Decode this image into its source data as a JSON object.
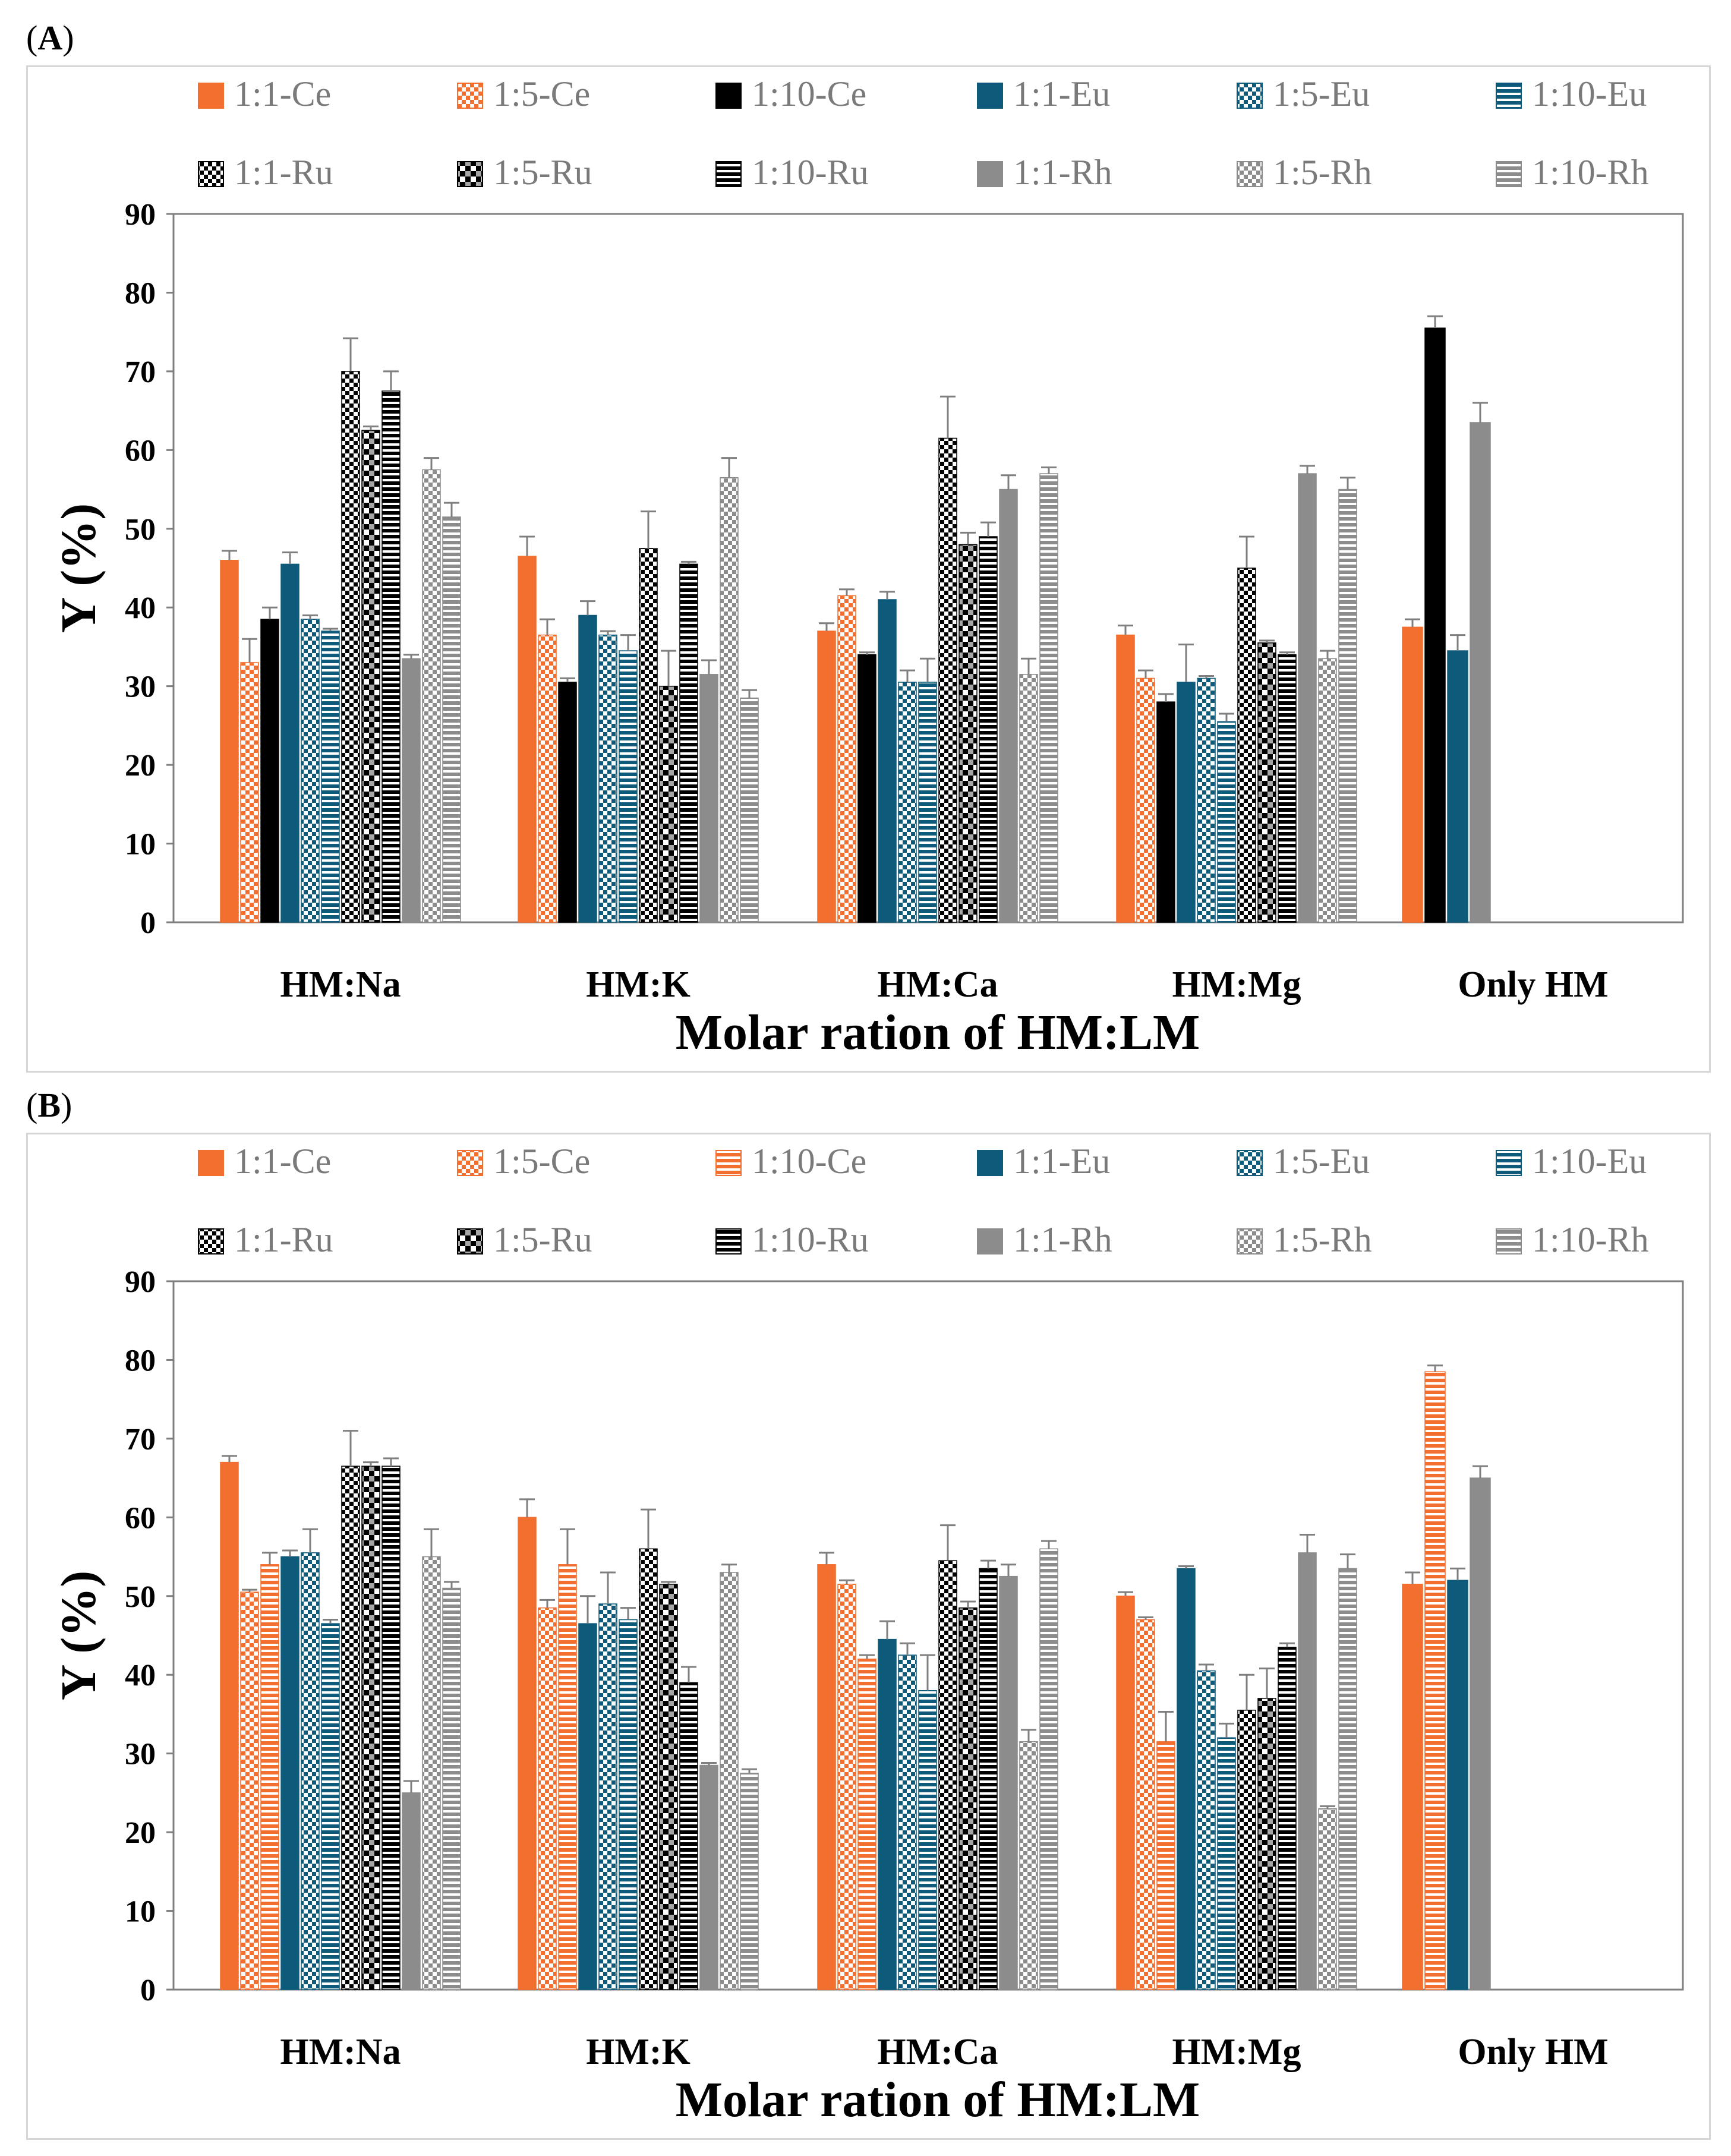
{
  "chart_data": [
    {
      "panel": "A",
      "type": "bar",
      "xlabel": "Molar ration of HM:LM",
      "ylabel": "Y (%)",
      "ylim": [
        0,
        90
      ],
      "yticks": [
        "0",
        "10",
        "20",
        "30",
        "40",
        "50",
        "60",
        "70",
        "80",
        "90"
      ],
      "categories": [
        "HM:Na",
        "HM:K",
        "HM:Ca",
        "HM:Mg",
        "Only HM"
      ],
      "legend_position": "top",
      "series": [
        {
          "name": "1:1-Ce",
          "color": "#F36F2F",
          "pattern": "solid",
          "values": [
            46,
            46.5,
            37,
            36.5,
            37.5
          ],
          "errors": [
            1.2,
            2.5,
            1.0,
            1.2,
            1.0
          ]
        },
        {
          "name": "1:5-Ce",
          "color": "#F36F2F",
          "pattern": "check",
          "values": [
            33,
            36.5,
            41.5,
            31,
            null
          ],
          "errors": [
            3.0,
            2.0,
            0.8,
            1.0,
            null
          ]
        },
        {
          "name": "1:10-Ce",
          "color": "#000000",
          "pattern": "solid",
          "values": [
            38.5,
            30.5,
            34,
            28,
            75.5
          ],
          "errors": [
            1.5,
            0.5,
            0.3,
            1.0,
            1.5
          ]
        },
        {
          "name": "1:1-Eu",
          "color": "#0E5A7A",
          "pattern": "solid",
          "values": [
            45.5,
            39,
            41,
            30.5,
            34.5
          ],
          "errors": [
            1.5,
            1.8,
            1.0,
            4.8,
            2.0
          ]
        },
        {
          "name": "1:5-Eu",
          "color": "#0E5A7A",
          "pattern": "check",
          "values": [
            38.5,
            36.5,
            30.5,
            31,
            null
          ],
          "errors": [
            0.5,
            0.5,
            1.5,
            0.3,
            null
          ]
        },
        {
          "name": "1:10-Eu",
          "color": "#0E5A7A",
          "pattern": "hstripe",
          "values": [
            37,
            34.5,
            30.5,
            25.5,
            null
          ],
          "errors": [
            0.3,
            2.0,
            3.0,
            1.0,
            null
          ]
        },
        {
          "name": "1:1-Ru",
          "color": "#000000",
          "pattern": "check",
          "values": [
            70,
            47.5,
            61.5,
            45,
            null
          ],
          "errors": [
            4.2,
            4.7,
            5.3,
            4.0,
            null
          ]
        },
        {
          "name": "1:5-Ru",
          "color": "#000000",
          "pattern": "check2",
          "values": [
            62.5,
            30,
            48,
            35.5,
            null
          ],
          "errors": [
            0.5,
            4.5,
            1.5,
            0.3,
            null
          ]
        },
        {
          "name": "1:10-Ru",
          "color": "#000000",
          "pattern": "hstripe",
          "values": [
            67.5,
            45.5,
            49,
            34,
            null
          ],
          "errors": [
            2.5,
            0.3,
            1.8,
            0.3,
            null
          ]
        },
        {
          "name": "1:1-Rh",
          "color": "#8C8C8C",
          "pattern": "solid",
          "values": [
            33.5,
            31.5,
            55,
            57,
            63.5
          ],
          "errors": [
            0.5,
            1.8,
            1.8,
            1.0,
            2.5
          ]
        },
        {
          "name": "1:5-Rh",
          "color": "#8C8C8C",
          "pattern": "check",
          "values": [
            57.5,
            56.5,
            31.5,
            33.5,
            null
          ],
          "errors": [
            1.5,
            2.5,
            2.0,
            1.0,
            null
          ]
        },
        {
          "name": "1:10-Rh",
          "color": "#8C8C8C",
          "pattern": "hstripe",
          "values": [
            51.5,
            28.5,
            57,
            55,
            null
          ],
          "errors": [
            1.8,
            1.0,
            0.8,
            1.5,
            null
          ]
        }
      ]
    },
    {
      "panel": "B",
      "type": "bar",
      "xlabel": "Molar ration of HM:LM",
      "ylabel": "Y (%)",
      "ylim": [
        0,
        90
      ],
      "yticks": [
        "0",
        "10",
        "20",
        "30",
        "40",
        "50",
        "60",
        "70",
        "80",
        "90"
      ],
      "categories": [
        "HM:Na",
        "HM:K",
        "HM:Ca",
        "HM:Mg",
        "Only HM"
      ],
      "legend_position": "top",
      "series": [
        {
          "name": "1:1-Ce",
          "color": "#F36F2F",
          "pattern": "solid",
          "values": [
            67,
            60,
            54,
            50,
            51.5
          ],
          "errors": [
            0.8,
            2.3,
            1.5,
            0.5,
            1.5
          ]
        },
        {
          "name": "1:5-Ce",
          "color": "#F36F2F",
          "pattern": "check",
          "values": [
            50.5,
            48.5,
            51.5,
            47,
            null
          ],
          "errors": [
            0.3,
            1.0,
            0.5,
            0.3,
            null
          ]
        },
        {
          "name": "1:10-Ce",
          "color": "#F36F2F",
          "pattern": "hstripe",
          "values": [
            54,
            54,
            42,
            31.5,
            78.5
          ],
          "errors": [
            1.5,
            4.5,
            0.5,
            3.8,
            0.8
          ]
        },
        {
          "name": "1:1-Eu",
          "color": "#0E5A7A",
          "pattern": "solid",
          "values": [
            55,
            46.5,
            44.5,
            53.5,
            52
          ],
          "errors": [
            0.8,
            3.5,
            2.3,
            0.3,
            1.5
          ]
        },
        {
          "name": "1:5-Eu",
          "color": "#0E5A7A",
          "pattern": "check",
          "values": [
            55.5,
            49,
            42.5,
            40.5,
            null
          ],
          "errors": [
            3.0,
            4.0,
            1.5,
            0.8,
            null
          ]
        },
        {
          "name": "1:10-Eu",
          "color": "#0E5A7A",
          "pattern": "hstripe",
          "values": [
            46.5,
            47,
            38,
            32,
            null
          ],
          "errors": [
            0.5,
            1.5,
            4.5,
            1.8,
            null
          ]
        },
        {
          "name": "1:1-Ru",
          "color": "#000000",
          "pattern": "check",
          "values": [
            66.5,
            56,
            54.5,
            35.5,
            null
          ],
          "errors": [
            4.5,
            5.0,
            4.5,
            4.5,
            null
          ]
        },
        {
          "name": "1:5-Ru",
          "color": "#000000",
          "pattern": "check2",
          "values": [
            66.5,
            51.5,
            48.5,
            37,
            null
          ],
          "errors": [
            0.5,
            0.3,
            0.8,
            3.8,
            null
          ]
        },
        {
          "name": "1:10-Ru",
          "color": "#000000",
          "pattern": "hstripe",
          "values": [
            66.5,
            39,
            53.5,
            43.5,
            null
          ],
          "errors": [
            1.0,
            2.0,
            1.0,
            0.5,
            null
          ]
        },
        {
          "name": "1:1-Rh",
          "color": "#8C8C8C",
          "pattern": "solid",
          "values": [
            25,
            28.5,
            52.5,
            55.5,
            65
          ],
          "errors": [
            1.5,
            0.3,
            1.5,
            2.3,
            1.5
          ]
        },
        {
          "name": "1:5-Rh",
          "color": "#8C8C8C",
          "pattern": "check",
          "values": [
            55,
            53,
            31.5,
            23,
            null
          ],
          "errors": [
            3.5,
            1.0,
            1.5,
            0.3,
            null
          ]
        },
        {
          "name": "1:10-Rh",
          "color": "#8C8C8C",
          "pattern": "hstripe",
          "values": [
            51,
            27.5,
            56,
            53.5,
            null
          ],
          "errors": [
            0.8,
            0.5,
            1.0,
            1.8,
            null
          ]
        }
      ]
    }
  ]
}
